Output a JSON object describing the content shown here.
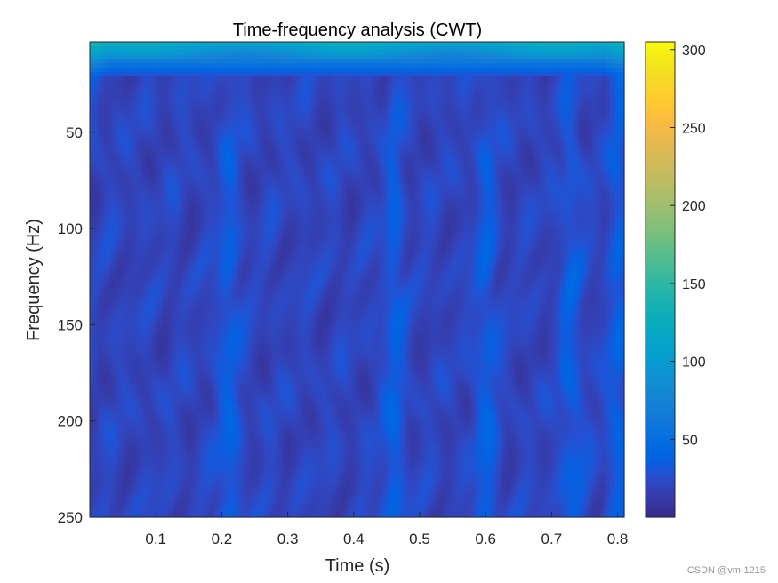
{
  "chart_data": {
    "type": "heatmap",
    "title": "Time-frequency analysis (CWT)",
    "xlabel": "Time (s)",
    "ylabel": "Frequency (Hz)",
    "xlim": [
      0,
      0.81
    ],
    "ylim": [
      3,
      250
    ],
    "y_reversed": true,
    "x_ticks": [
      0.1,
      0.2,
      0.3,
      0.4,
      0.5,
      0.6,
      0.7,
      0.8
    ],
    "x_tick_labels": [
      "0.1",
      "0.2",
      "0.3",
      "0.4",
      "0.5",
      "0.6",
      "0.7",
      "0.8"
    ],
    "y_ticks": [
      50,
      100,
      150,
      200,
      250
    ],
    "y_tick_labels": [
      "50",
      "100",
      "150",
      "200",
      "250"
    ],
    "colorbar": {
      "colormap": "parula",
      "clim": [
        0,
        305
      ],
      "ticks": [
        50,
        100,
        150,
        200,
        250,
        300
      ],
      "tick_labels": [
        "50",
        "100",
        "150",
        "200",
        "250",
        "300"
      ]
    },
    "values_summary": {
      "low_frequency_band_top": {
        "freq_range_hz": [
          3,
          12
        ],
        "magnitude": 120
      },
      "band_near_15hz": {
        "magnitude": 70
      },
      "background_magnitude": 20,
      "bright_streak_times_s": [
        0.21,
        0.46,
        0.6,
        0.73,
        0.8
      ]
    }
  },
  "watermark": "CSDN @vm-1215"
}
